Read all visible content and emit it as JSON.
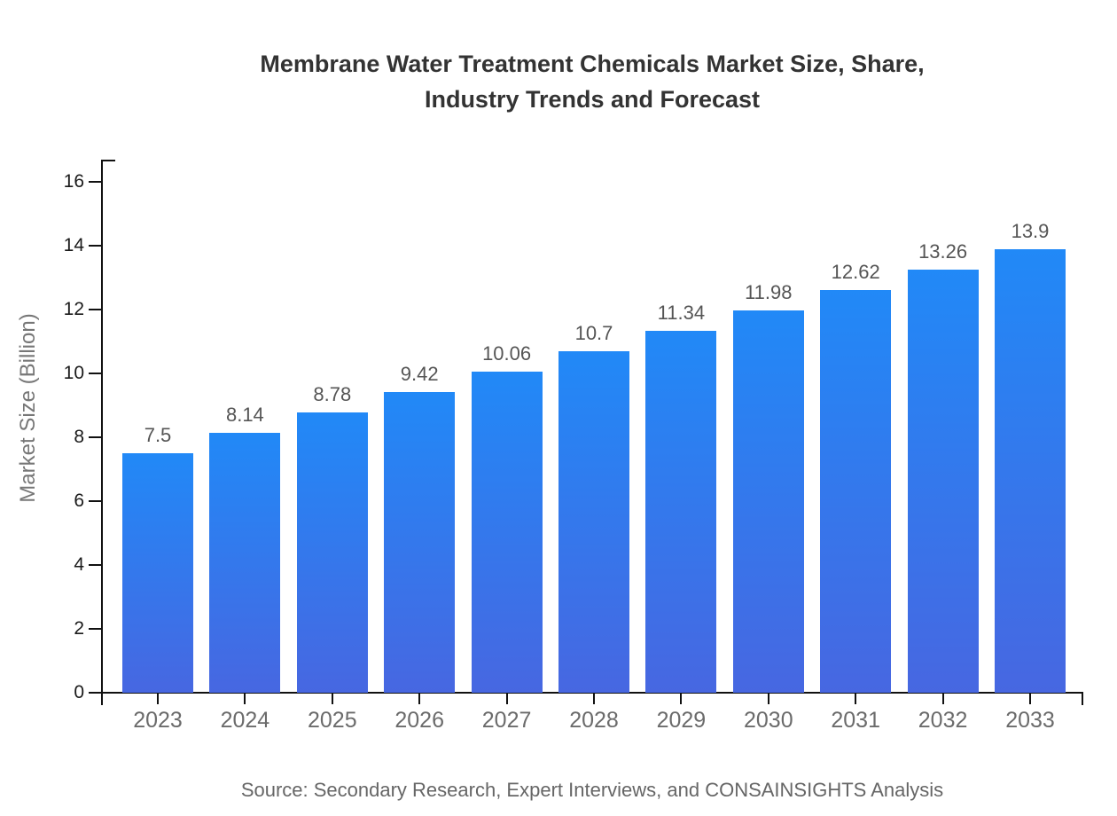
{
  "header": {
    "title_line1": "Membrane Water Treatment Chemicals Market Size, Share,",
    "title_line2": "Industry Trends and Forecast"
  },
  "footer": {
    "source": "Source: Secondary Research, Expert Interviews, and CONSAINSIGHTS Analysis"
  },
  "chart_data": {
    "type": "bar",
    "title": "Membrane Water Treatment Chemicals Market Size, Share, Industry Trends and Forecast",
    "categories": [
      "2023",
      "2024",
      "2025",
      "2026",
      "2027",
      "2028",
      "2029",
      "2030",
      "2031",
      "2032",
      "2033"
    ],
    "values": [
      7.5,
      8.14,
      8.78,
      9.42,
      10.06,
      10.7,
      11.34,
      11.98,
      12.62,
      13.26,
      13.9
    ],
    "xlabel": "",
    "ylabel": "Market Size (Billion)",
    "ylim": [
      0,
      16
    ],
    "yticks": [
      0,
      2,
      4,
      6,
      8,
      10,
      12,
      14,
      16
    ],
    "grid": false,
    "legend": false,
    "source": "Source: Secondary Research, Expert Interviews, and CONSAINSIGHTS Analysis",
    "colors": {
      "bar_gradient_top": "#2189f7",
      "bar_gradient_bottom": "#4767e1",
      "axis": "#111111",
      "title_text": "#333333",
      "value_label_text": "#555555",
      "x_label_text": "#6b6b6b",
      "y_label_text": "#1a1a1a",
      "axis_title_text": "#777777",
      "source_text": "#666666"
    }
  }
}
